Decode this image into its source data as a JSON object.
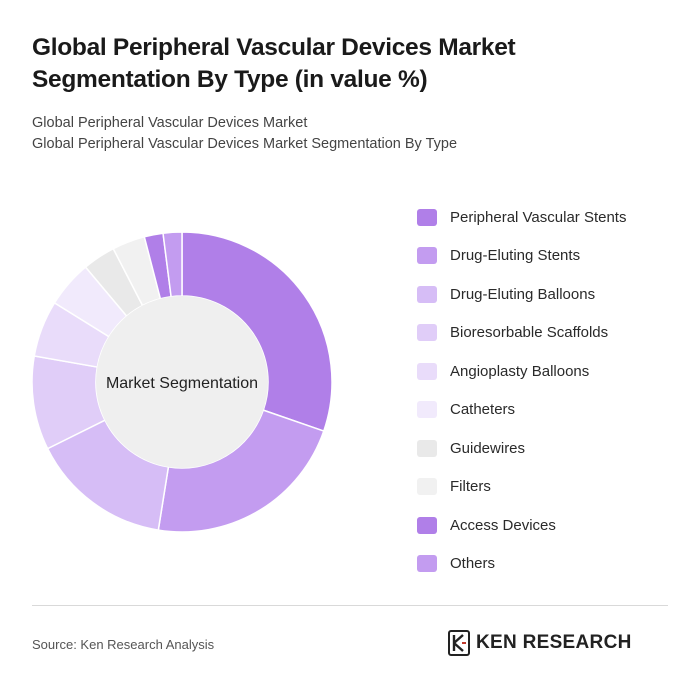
{
  "header": {
    "title": "Global Peripheral Vascular Devices Market Segmentation By Type (in value %)",
    "subtitle_line1": "Global Peripheral Vascular Devices Market",
    "subtitle_line2": "Global Peripheral Vascular Devices Market Segmentation By Type"
  },
  "chart_data": {
    "type": "pie",
    "center_label": "Market Segmentation",
    "legend_position": "right",
    "categories": [
      "Peripheral Vascular Stents",
      "Drug-Eluting Stents",
      "Drug-Eluting Balloons",
      "Bioresorbable Scaffolds",
      "Angioplasty Balloons",
      "Catheters",
      "Guidewires",
      "Filters",
      "Access Devices",
      "Others"
    ],
    "values": [
      30,
      22,
      15,
      10,
      6,
      5,
      3.5,
      3.5,
      2,
      2
    ],
    "colors": [
      "#b07fe8",
      "#c39cf0",
      "#d6bdf6",
      "#e0cdf8",
      "#e9dcfa",
      "#f1eafc",
      "#e9e9e9",
      "#f1f1f1",
      "#b07fe8",
      "#c39cf0"
    ]
  },
  "footer": {
    "source": "Source: Ken Research Analysis",
    "brand": "KEN RESEARCH",
    "logo_icon": "ken-research-logo-icon"
  }
}
